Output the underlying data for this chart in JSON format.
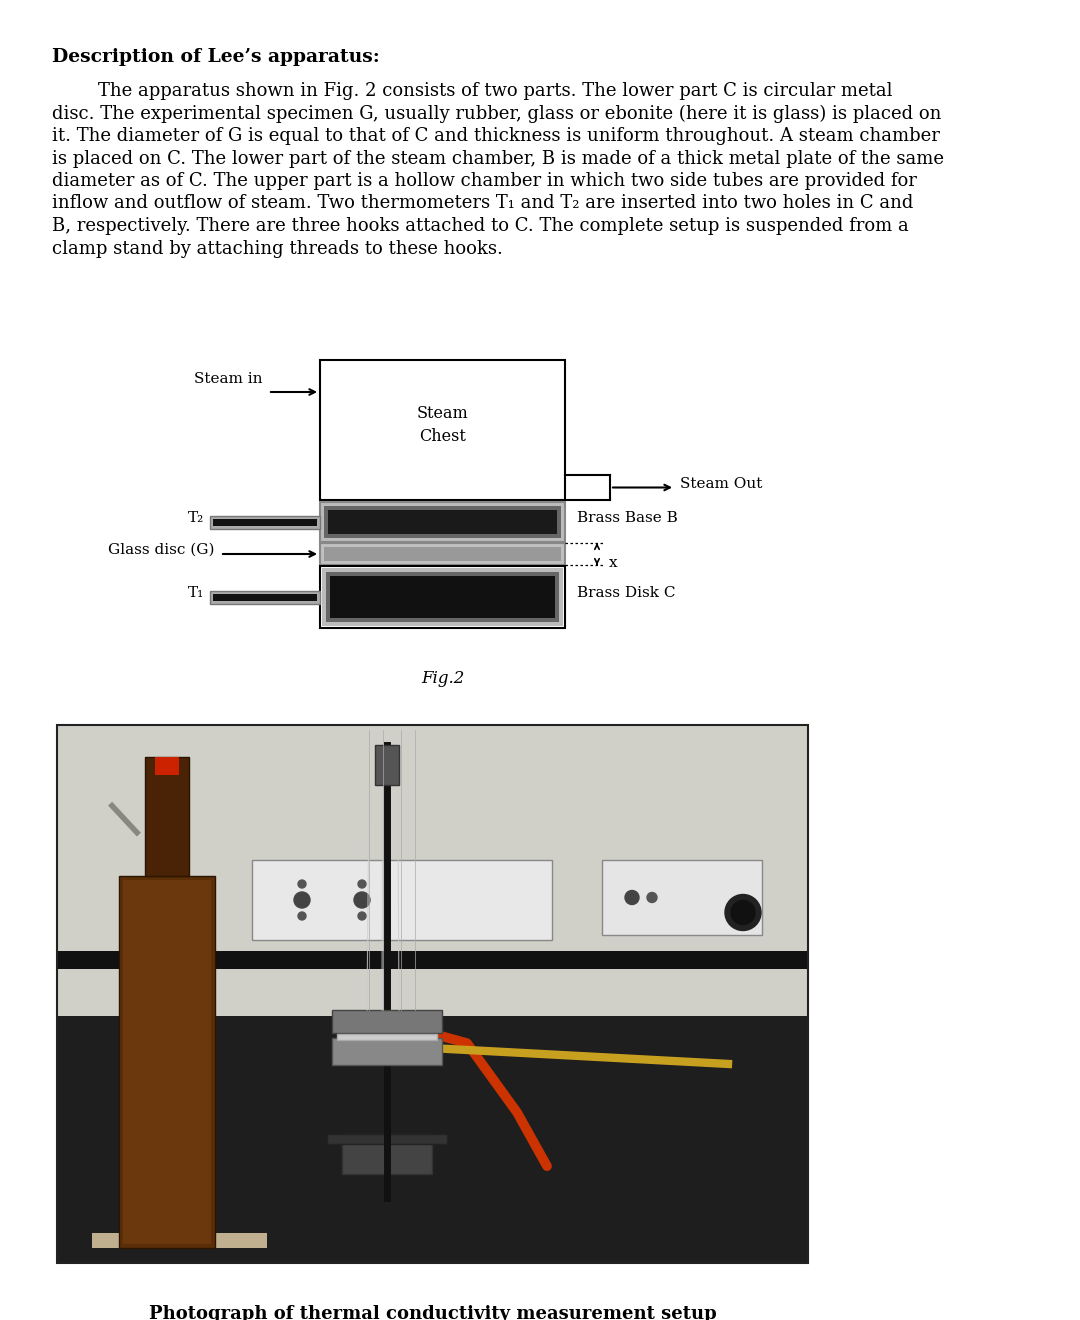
{
  "title": "Description of Lee’s apparatus:",
  "body_lines": [
    "        The apparatus shown in Fig. 2 consists of two parts. The lower part C is circular metal",
    "disc. The experimental specimen G, usually rubber, glass or ebonite (here it is glass) is placed on",
    "it. The diameter of G is equal to that of C and thickness is uniform throughout. A steam chamber",
    "is placed on C. The lower part of the steam chamber, B is made of a thick metal plate of the same",
    "diameter as of C. The upper part is a hollow chamber in which two side tubes are provided for",
    "inflow and outflow of steam. Two thermometers T₁ and T₂ are inserted into two holes in C and",
    "B, respectively. There are three hooks attached to C. The complete setup is suspended from a",
    "clamp stand by attaching threads to these hooks."
  ],
  "fig_caption": "Fig.2",
  "photo_caption": "Photograph of thermal conductivity measurement setup",
  "bg_color": "#ffffff",
  "text_color": "#000000",
  "title_fontsize": 13.5,
  "body_fontsize": 13.0,
  "diagram": {
    "steam_chest_label": "Steam\nChest",
    "brass_base_label": "Brass Base B",
    "brass_disk_label": "Brass Disk C",
    "glass_disc_label": "Glass disc (G)",
    "steam_in_label": "Steam in",
    "steam_out_label": "Steam Out",
    "t1_label": "T₁",
    "t2_label": "T₂",
    "x_label": "x"
  }
}
